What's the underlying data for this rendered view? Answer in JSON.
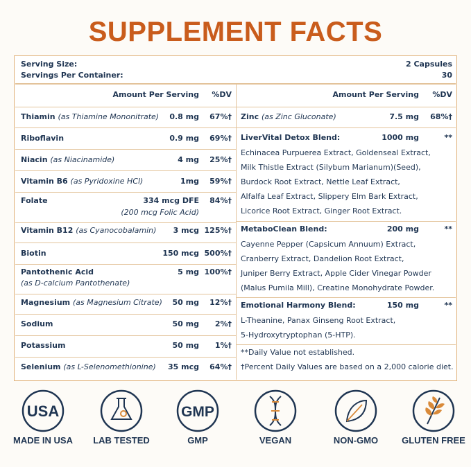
{
  "title": "SUPPLEMENT FACTS",
  "serving": {
    "size_label": "Serving Size:",
    "size_value": "2 Capsules",
    "per_container_label": "Servings Per Container:",
    "per_container_value": "30"
  },
  "left": {
    "header": {
      "amount": "Amount Per Serving",
      "dv": "%DV"
    },
    "rows": [
      {
        "name": "Thiamin",
        "note": "(as Thiamine Mononitrate)",
        "amount": "0.8 mg",
        "dv": "67%†"
      },
      {
        "name": "Riboflavin",
        "amount": "0.9 mg",
        "dv": "69%†"
      },
      {
        "name": "Niacin",
        "note": "(as Niacinamide)",
        "amount": "4 mg",
        "dv": "25%†"
      },
      {
        "name": "Vitamin B6",
        "note": "(as Pyridoxine HCl)",
        "amount": "1mg",
        "dv": "59%†"
      },
      {
        "name": "Folate",
        "amount": "334 mcg DFE",
        "amount_note": "(200 mcg Folic Acid)",
        "dv": "84%†"
      },
      {
        "name": "Vitamin B12",
        "note": "(as Cyanocobalamin)",
        "amount": "3 mcg",
        "dv": "125%†"
      },
      {
        "name": "Biotin",
        "amount": "150 mcg",
        "dv": "500%†"
      },
      {
        "name": "Pantothenic Acid",
        "subnote": "(as D-calcium Pantothenate)",
        "amount": "5 mg",
        "dv": "100%†"
      },
      {
        "name": "Magnesium",
        "note": "(as Magnesium Citrate)",
        "amount": "50 mg",
        "dv": "12%†"
      },
      {
        "name": "Sodium",
        "amount": "50 mg",
        "dv": "2%†"
      },
      {
        "name": "Potassium",
        "amount": "50 mg",
        "dv": "1%†"
      },
      {
        "name": "Selenium",
        "note": "(as L-Selenomethionine)",
        "amount": "35 mcg",
        "dv": "64%†"
      }
    ]
  },
  "right": {
    "header": {
      "amount": "Amount Per Serving",
      "dv": "%DV"
    },
    "rows": [
      {
        "name": "Zinc",
        "note": "(as Zinc Gluconate)",
        "amount": "7.5 mg",
        "dv": "68%†"
      }
    ],
    "blends": [
      {
        "name": "LiverVital Detox Blend:",
        "amount": "1000 mg",
        "dv": "**",
        "ingredients": [
          "Echinacea Purpuerea Extract, Goldenseal Extract,",
          "Milk Thistle Extract (Silybum Marianum)(Seed),",
          "Burdock Root Extract, Nettle Leaf Extract,",
          "Alfalfa Leaf Extract, Slippery Elm Bark Extract,",
          "Licorice Root Extract, Ginger Root Extract."
        ]
      },
      {
        "name": "MetaboClean Blend:",
        "amount": "200 mg",
        "dv": "**",
        "ingredients": [
          "Cayenne Pepper (Capsicum Annuum) Extract,",
          "Cranberry Extract, Dandelion Root Extract,",
          "Juniper Berry Extract, Apple Cider Vinegar Powder",
          "(Malus Pumila Mill), Creatine Monohydrate Powder."
        ]
      },
      {
        "name": "Emotional Harmony Blend:",
        "amount": "150 mg",
        "dv": "**",
        "ingredients": [
          "L-Theanine, Panax Ginseng Root Extract,",
          "5-Hydroxytryptophan (5-HTP)."
        ]
      }
    ],
    "footnotes": [
      "**Daily Value not established.",
      "†Percent Daily Values are based on a 2,000 calorie diet."
    ]
  },
  "badges": [
    {
      "icon_text": "USA",
      "label": "MADE IN USA"
    },
    {
      "label": "LAB TESTED"
    },
    {
      "icon_text": "GMP",
      "label": "GMP"
    },
    {
      "label": "VEGAN"
    },
    {
      "label": "NON-GMO"
    },
    {
      "label": "GLUTEN FREE"
    }
  ]
}
